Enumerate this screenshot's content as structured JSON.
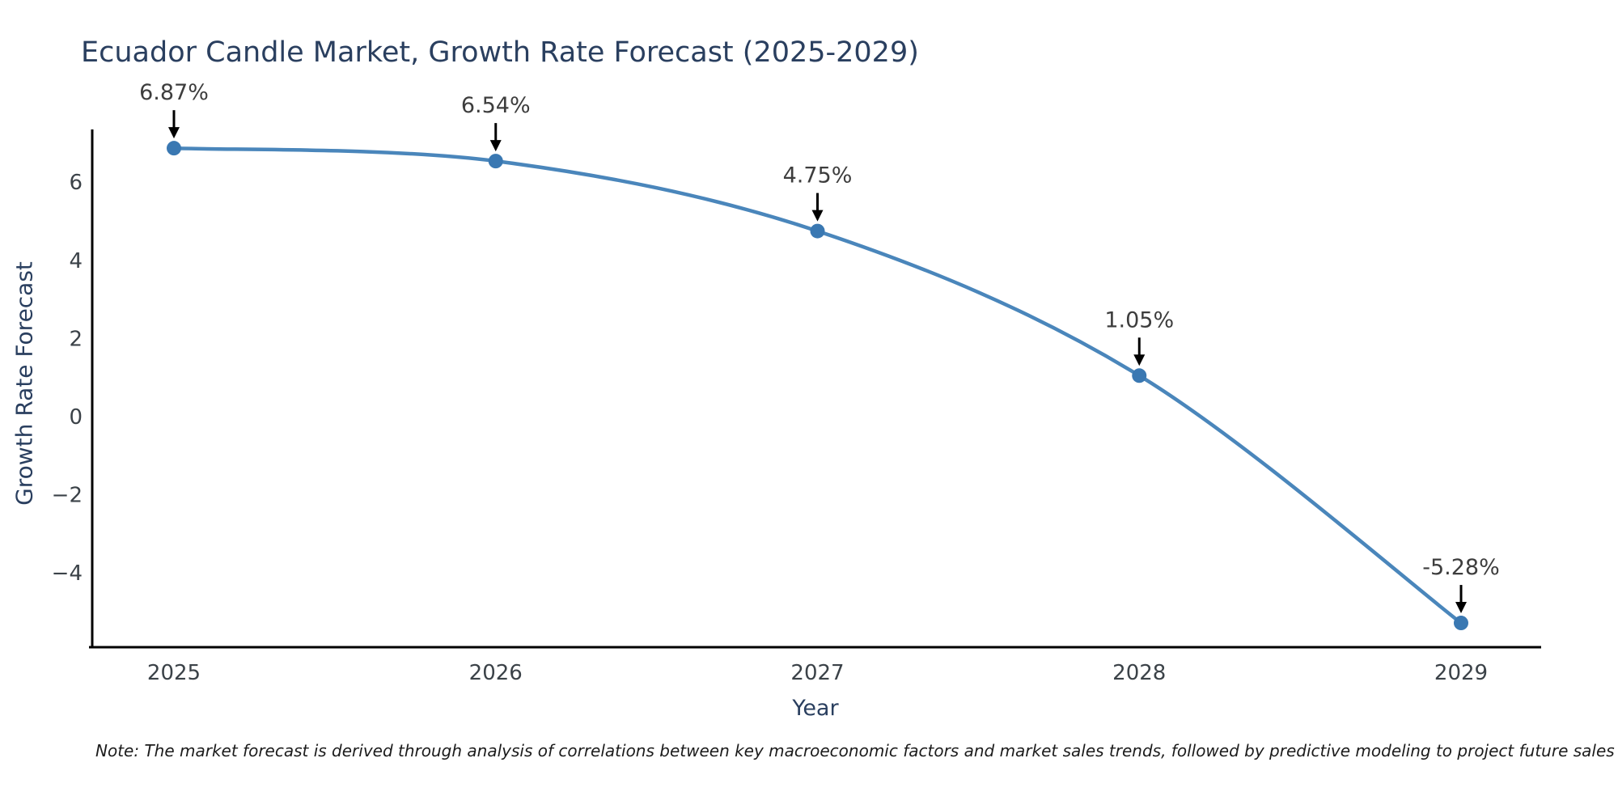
{
  "note": "Note: The market forecast is derived through analysis of correlations between key macroeconomic factors and market sales trends, followed by predictive modeling to project future sales",
  "chart_data": {
    "type": "line",
    "title": "Ecuador Candle Market, Growth Rate Forecast (2025-2029)",
    "xlabel": "Year",
    "ylabel": "Growth Rate Forecast",
    "categories": [
      2025,
      2026,
      2027,
      2028,
      2029
    ],
    "values": [
      6.87,
      6.54,
      4.75,
      1.05,
      -5.28
    ],
    "point_labels": [
      "6.87%",
      "6.54%",
      "4.75%",
      "1.05%",
      "-5.28%"
    ],
    "yticks": [
      6,
      4,
      2,
      0,
      -2,
      -4
    ],
    "ytick_labels": [
      "6",
      "4",
      "2",
      "0",
      "−2",
      "−4"
    ],
    "ylim": [
      -5.9,
      7.35
    ],
    "grid": false,
    "legend": null,
    "marker_style": "circle",
    "annotation_arrows": true,
    "colors": {
      "line": "#4a86bb",
      "marker": "#3a78b2",
      "axis": "#000000",
      "arrow": "#000000",
      "title": "#2a3f5f",
      "axis_label": "#2a3f5f",
      "tick": "#3b4248",
      "annotation": "#3d3d3d",
      "background": "#ffffff"
    }
  }
}
